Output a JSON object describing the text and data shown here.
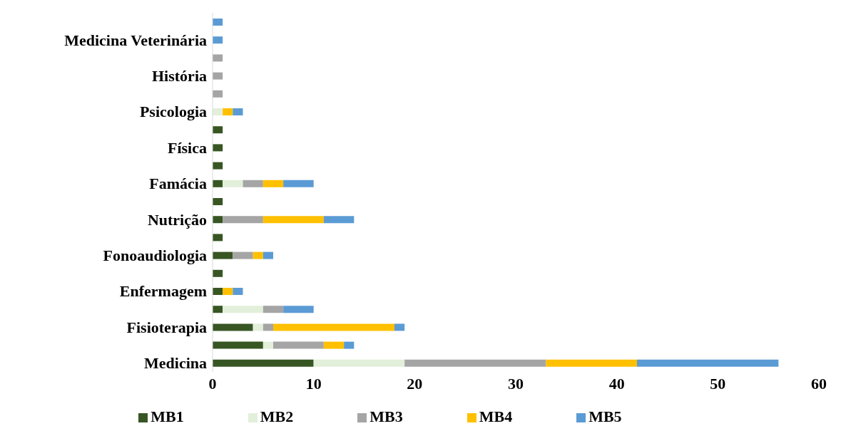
{
  "chart_data": {
    "type": "bar",
    "orientation": "horizontal",
    "stacked": true,
    "categories": [
      null,
      "Medicina Veterinária",
      null,
      "História",
      null,
      "Psicologia",
      null,
      "Física",
      null,
      "Famácia",
      null,
      "Nutrição",
      null,
      "Fonoaudiologia",
      null,
      "Enfermagem",
      null,
      "Fisioterapia",
      null,
      "Medicina"
    ],
    "series": [
      {
        "name": "MB1",
        "color": "#375623",
        "values": [
          null,
          null,
          null,
          null,
          null,
          null,
          1,
          1,
          1,
          1,
          1,
          1,
          1,
          2,
          1,
          1,
          1,
          4,
          5,
          10
        ]
      },
      {
        "name": "MB2",
        "color": "#e2efda",
        "values": [
          null,
          null,
          null,
          null,
          null,
          1,
          null,
          null,
          null,
          2,
          null,
          null,
          null,
          null,
          null,
          null,
          4,
          1,
          1,
          9
        ]
      },
      {
        "name": "MB3",
        "color": "#a5a5a5",
        "values": [
          null,
          null,
          1,
          1,
          1,
          null,
          null,
          null,
          null,
          2,
          null,
          4,
          null,
          2,
          null,
          null,
          2,
          1,
          5,
          14
        ]
      },
      {
        "name": "MB4",
        "color": "#ffc000",
        "values": [
          null,
          null,
          null,
          null,
          null,
          1,
          null,
          null,
          null,
          2,
          null,
          6,
          null,
          1,
          null,
          1,
          null,
          12,
          2,
          9
        ]
      },
      {
        "name": "MB5",
        "color": "#5b9bd5",
        "values": [
          1,
          1,
          null,
          null,
          null,
          1,
          null,
          null,
          null,
          3,
          null,
          3,
          null,
          1,
          null,
          1,
          3,
          1,
          1,
          14
        ]
      }
    ],
    "xlim": [
      0,
      60
    ],
    "xticks": [
      0,
      10,
      20,
      30,
      40,
      50,
      60
    ],
    "grid": false,
    "legend": "bottom"
  }
}
